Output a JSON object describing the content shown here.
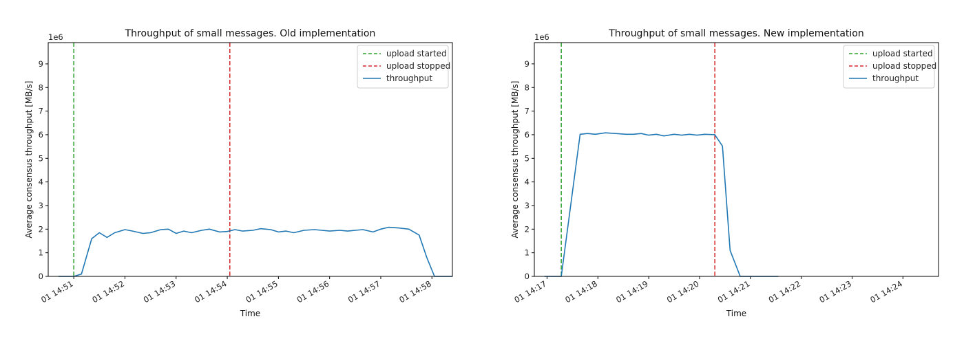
{
  "chart_data": [
    {
      "type": "line",
      "title": "Throughput of small messages. Old implementation",
      "xlabel": "Time",
      "ylabel": "Average consensus throughput [MB/s]",
      "y_scale_label": "1e6",
      "ylim": [
        0,
        9.9
      ],
      "yticks": [
        0,
        1,
        2,
        3,
        4,
        5,
        6,
        7,
        8,
        9
      ],
      "xlim_minutes": [
        50.5,
        58.4
      ],
      "xticks": [
        {
          "minute": 51,
          "label": "01 14:51"
        },
        {
          "minute": 52,
          "label": "01 14:52"
        },
        {
          "minute": 53,
          "label": "01 14:53"
        },
        {
          "minute": 54,
          "label": "01 14:54"
        },
        {
          "minute": 55,
          "label": "01 14:55"
        },
        {
          "minute": 56,
          "label": "01 14:56"
        },
        {
          "minute": 57,
          "label": "01 14:57"
        },
        {
          "minute": 58,
          "label": "01 14:58"
        }
      ],
      "vlines": [
        {
          "name": "upload started",
          "x_minute": 51.0,
          "color": "#2ca02c"
        },
        {
          "name": "upload stopped",
          "x_minute": 54.05,
          "color": "#d62728"
        }
      ],
      "series": [
        {
          "name": "throughput",
          "color": "#1f77b4",
          "x_minutes": [
            50.7,
            51.0,
            51.15,
            51.35,
            51.5,
            51.65,
            51.8,
            52.0,
            52.15,
            52.35,
            52.5,
            52.7,
            52.85,
            53.0,
            53.15,
            53.3,
            53.5,
            53.65,
            53.85,
            54.0,
            54.15,
            54.3,
            54.5,
            54.65,
            54.85,
            55.0,
            55.15,
            55.3,
            55.5,
            55.7,
            55.85,
            56.0,
            56.2,
            56.35,
            56.5,
            56.65,
            56.85,
            57.0,
            57.15,
            57.35,
            57.55,
            57.75,
            57.9,
            58.05,
            58.2,
            58.4
          ],
          "values": [
            0.0,
            0.0,
            0.1,
            1.6,
            1.85,
            1.65,
            1.85,
            1.98,
            1.92,
            1.82,
            1.85,
            1.98,
            2.0,
            1.82,
            1.92,
            1.85,
            1.95,
            2.0,
            1.88,
            1.9,
            1.98,
            1.92,
            1.95,
            2.02,
            1.98,
            1.88,
            1.92,
            1.85,
            1.95,
            1.98,
            1.95,
            1.92,
            1.95,
            1.92,
            1.95,
            1.98,
            1.88,
            2.0,
            2.08,
            2.05,
            2.0,
            1.75,
            0.8,
            0.0,
            0.0,
            0.0
          ]
        }
      ],
      "legend": {
        "placement": "top-right",
        "entries": [
          "upload started",
          "upload stopped",
          "throughput"
        ]
      },
      "grid": false
    },
    {
      "type": "line",
      "title": "Throughput of small messages. New implementation",
      "xlabel": "Time",
      "ylabel": "Average consensus throughput [MB/s]",
      "y_scale_label": "1e6",
      "ylim": [
        0,
        9.9
      ],
      "yticks": [
        0,
        1,
        2,
        3,
        4,
        5,
        6,
        7,
        8,
        9
      ],
      "xlim_minutes": [
        16.75,
        24.7
      ],
      "xticks": [
        {
          "minute": 17,
          "label": "01 14:17"
        },
        {
          "minute": 18,
          "label": "01 14:18"
        },
        {
          "minute": 19,
          "label": "01 14:19"
        },
        {
          "minute": 20,
          "label": "01 14:20"
        },
        {
          "minute": 21,
          "label": "01 14:21"
        },
        {
          "minute": 22,
          "label": "01 14:22"
        },
        {
          "minute": 23,
          "label": "01 14:23"
        },
        {
          "minute": 24,
          "label": "01 14:24"
        }
      ],
      "vlines": [
        {
          "name": "upload started",
          "x_minute": 17.28,
          "color": "#2ca02c"
        },
        {
          "name": "upload stopped",
          "x_minute": 20.3,
          "color": "#d62728"
        }
      ],
      "series": [
        {
          "name": "throughput",
          "color": "#1f77b4",
          "x_minutes": [
            16.95,
            17.1,
            17.28,
            17.65,
            17.8,
            17.95,
            18.15,
            18.35,
            18.55,
            18.7,
            18.85,
            19.0,
            19.15,
            19.3,
            19.5,
            19.65,
            19.8,
            19.95,
            20.1,
            20.3,
            20.45,
            20.6,
            20.8,
            20.95,
            21.15,
            21.35,
            21.55
          ],
          "values": [
            0.0,
            0.0,
            0.0,
            6.02,
            6.05,
            6.02,
            6.08,
            6.05,
            6.02,
            6.02,
            6.05,
            5.98,
            6.02,
            5.95,
            6.02,
            5.98,
            6.02,
            5.98,
            6.02,
            6.0,
            5.52,
            1.1,
            0.0,
            0.0,
            0.0,
            0.0,
            0.0
          ]
        }
      ],
      "legend": {
        "placement": "top-right",
        "entries": [
          "upload started",
          "upload stopped",
          "throughput"
        ]
      },
      "grid": false
    }
  ]
}
